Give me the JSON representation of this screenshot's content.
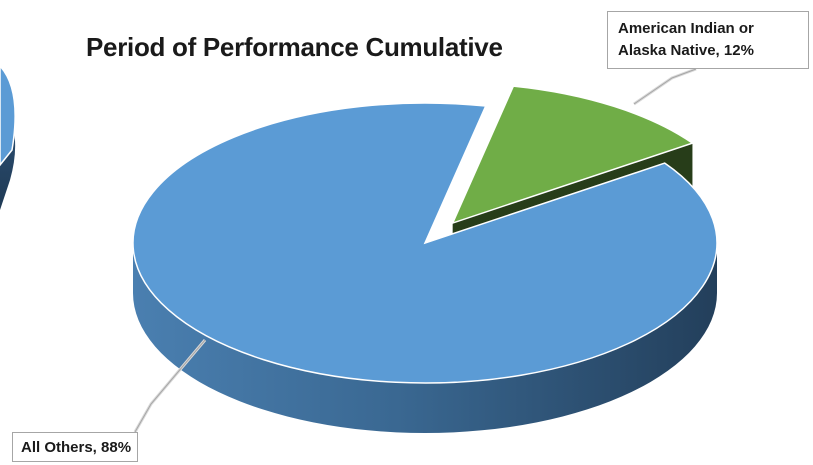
{
  "chart_data": {
    "type": "pie",
    "title": "Period of Performance Cumulative",
    "slices": [
      {
        "name": "American Indian or Alaska Native",
        "value": 12,
        "label_line1": "American Indian or",
        "label_line2": "Alaska Native, 12%",
        "color": "#70ad47"
      },
      {
        "name": "All Others",
        "value": 88,
        "label": "All Others, 88%",
        "color": "#5b9bd5"
      }
    ],
    "style": "3d-exploded",
    "legend": "none"
  }
}
